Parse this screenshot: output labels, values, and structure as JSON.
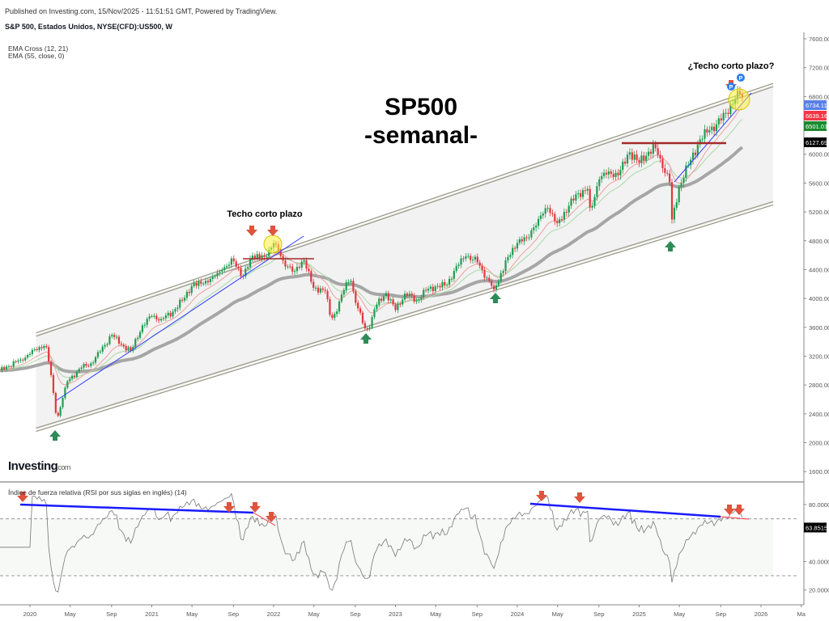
{
  "header": {
    "published": "Published on Investing.com, 15/Nov/2025 - 11:51:51 GMT, Powered by TradingView.",
    "symbol": "S&P 500, Estados Unidos, NYSE(CFD):US500, W",
    "indicator_1": "EMA Cross (12, 21)",
    "indicator_2": "EMA (55, close, 0)",
    "logo": "Investing",
    "logo_suffix": "com"
  },
  "chart_data": [
    {
      "type": "candlestick",
      "title": "SP500",
      "subtitle": "-semanal-",
      "interval": "weekly",
      "ylim": [
        1600,
        7600
      ],
      "yticks": [
        "7600.00",
        "7200.00",
        "6800.00",
        "6000.00",
        "5600.00",
        "5200.00",
        "4800.00",
        "4400.00",
        "4000.00",
        "3600.00",
        "3200.00",
        "2800.00",
        "2400.00",
        "2000.00",
        "1600.00"
      ],
      "ytick_values": [
        7600,
        7200,
        6800,
        6000,
        5600,
        5200,
        4800,
        4400,
        4000,
        3600,
        3200,
        2800,
        2400,
        2000,
        1600
      ],
      "xticks": [
        "2020",
        "May",
        "Sep",
        "2021",
        "May",
        "Sep",
        "2022",
        "May",
        "Sep",
        "2023",
        "May",
        "Sep",
        "2024",
        "May",
        "Sep",
        "2025",
        "May",
        "Sep",
        "2026",
        "Ma"
      ],
      "xtick_values": [
        2020,
        2020.33,
        2020.67,
        2021,
        2021.33,
        2021.67,
        2022,
        2022.33,
        2022.67,
        2023,
        2023.33,
        2023.67,
        2024,
        2024.33,
        2024.67,
        2025,
        2025.33,
        2025.67,
        2026,
        2026.33
      ],
      "close_anchors": [
        [
          2019.75,
          3000
        ],
        [
          2019.92,
          3150
        ],
        [
          2020.0,
          3230
        ],
        [
          2020.08,
          3330
        ],
        [
          2020.13,
          3370
        ],
        [
          2020.17,
          2980
        ],
        [
          2020.22,
          2300
        ],
        [
          2020.3,
          2840
        ],
        [
          2020.42,
          3040
        ],
        [
          2020.5,
          3100
        ],
        [
          2020.58,
          3270
        ],
        [
          2020.67,
          3500
        ],
        [
          2020.75,
          3360
        ],
        [
          2020.83,
          3270
        ],
        [
          2020.92,
          3620
        ],
        [
          2021.0,
          3756
        ],
        [
          2021.08,
          3714
        ],
        [
          2021.17,
          3811
        ],
        [
          2021.25,
          3973
        ],
        [
          2021.33,
          4181
        ],
        [
          2021.42,
          4204
        ],
        [
          2021.5,
          4298
        ],
        [
          2021.58,
          4395
        ],
        [
          2021.67,
          4523
        ],
        [
          2021.75,
          4308
        ],
        [
          2021.83,
          4605
        ],
        [
          2021.92,
          4567
        ],
        [
          2022.0,
          4766
        ],
        [
          2022.08,
          4516
        ],
        [
          2022.17,
          4374
        ],
        [
          2022.25,
          4530
        ],
        [
          2022.33,
          4132
        ],
        [
          2022.42,
          4132
        ],
        [
          2022.47,
          3700
        ],
        [
          2022.5,
          3785
        ],
        [
          2022.58,
          4130
        ],
        [
          2022.63,
          4280
        ],
        [
          2022.67,
          3955
        ],
        [
          2022.75,
          3586
        ],
        [
          2022.79,
          3600
        ],
        [
          2022.83,
          3872
        ],
        [
          2022.92,
          4080
        ],
        [
          2023.0,
          3840
        ],
        [
          2023.08,
          4077
        ],
        [
          2023.17,
          3970
        ],
        [
          2023.25,
          4109
        ],
        [
          2023.33,
          4169
        ],
        [
          2023.42,
          4180
        ],
        [
          2023.5,
          4450
        ],
        [
          2023.58,
          4589
        ],
        [
          2023.67,
          4508
        ],
        [
          2023.75,
          4288
        ],
        [
          2023.81,
          4120
        ],
        [
          2023.83,
          4194
        ],
        [
          2023.92,
          4568
        ],
        [
          2024.0,
          4770
        ],
        [
          2024.08,
          4846
        ],
        [
          2024.17,
          5096
        ],
        [
          2024.25,
          5254
        ],
        [
          2024.33,
          5036
        ],
        [
          2024.42,
          5278
        ],
        [
          2024.5,
          5460
        ],
        [
          2024.58,
          5522
        ],
        [
          2024.6,
          5200
        ],
        [
          2024.67,
          5648
        ],
        [
          2024.75,
          5762
        ],
        [
          2024.83,
          5705
        ],
        [
          2024.92,
          6032
        ],
        [
          2025.0,
          5882
        ],
        [
          2025.08,
          6041
        ],
        [
          2025.13,
          6100
        ],
        [
          2025.17,
          5955
        ],
        [
          2025.25,
          5612
        ],
        [
          2025.27,
          5074
        ],
        [
          2025.33,
          5569
        ],
        [
          2025.42,
          5912
        ],
        [
          2025.5,
          6205
        ],
        [
          2025.58,
          6339
        ],
        [
          2025.67,
          6460
        ],
        [
          2025.75,
          6688
        ],
        [
          2025.83,
          6840
        ],
        [
          2025.86,
          6734
        ]
      ],
      "channel": {
        "upper": [
          [
            2020.05,
            3500
          ],
          [
            2026.1,
            6960
          ]
        ],
        "lower": [
          [
            2020.05,
            2180
          ],
          [
            2026.1,
            5320
          ]
        ]
      },
      "price_labels": [
        {
          "text": "6734.11",
          "value": 6734.11,
          "color": "#5b7fe8"
        },
        {
          "text": "6639.16",
          "value": 6639.16,
          "color": "#f23645"
        },
        {
          "text": "6501.01",
          "value": 6501.01,
          "color": "#1b8a2e"
        },
        {
          "text": "6127.69",
          "value": 6127.69,
          "color": "#000000"
        }
      ],
      "annotations": {
        "top_2022": "Techo corto plazo",
        "top_2025": "¿Techo corto plazo?",
        "badge": "P"
      },
      "ema_periods": [
        12,
        21,
        55
      ],
      "colors": {
        "up": "#1e9e50",
        "down": "#e0383e",
        "ema55": "#a6a6a6",
        "ema12": "#f0a0a0",
        "ema21": "#a8d8a8",
        "arrow_down": "#e0533d",
        "arrow_up": "#2e8b57"
      }
    },
    {
      "type": "line",
      "title": "Índice de fuerza relativa (RSI por sus siglas en inglés) (14)",
      "ylim": [
        10,
        90
      ],
      "yticks": [
        "80.0000",
        "40.0000",
        "20.0000"
      ],
      "ytick_values": [
        80,
        40,
        20
      ],
      "bands": [
        70,
        30
      ],
      "last_value_label": "63.8515",
      "last_value": 63.8515
    }
  ]
}
